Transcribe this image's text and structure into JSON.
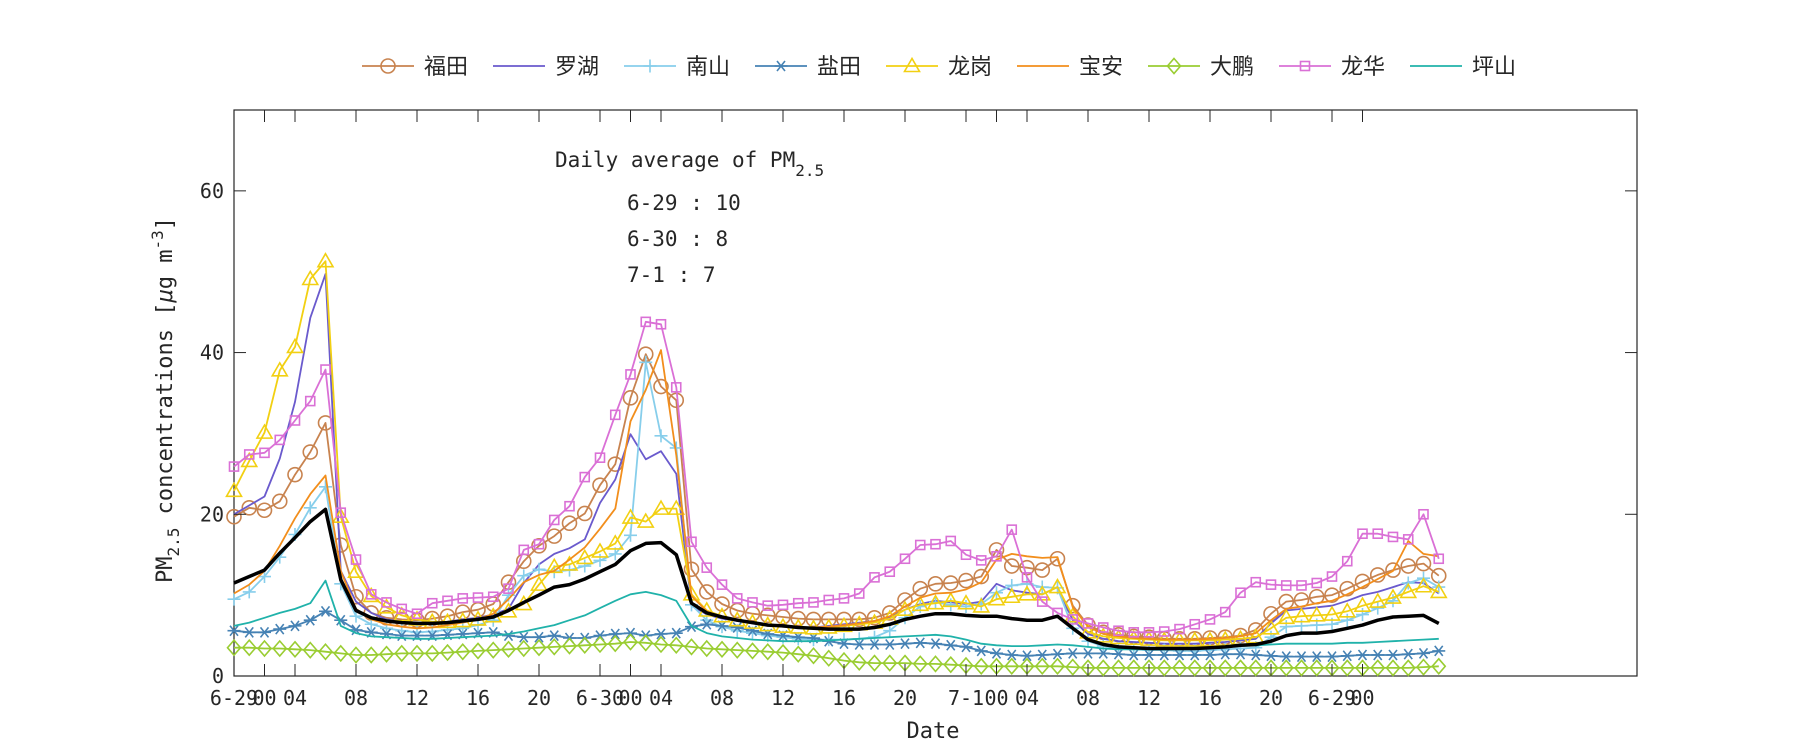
{
  "chart_data": {
    "type": "line",
    "title": "",
    "xlabel": "Date",
    "ylabel": "PM2.5 concentrations [μg m^-3]",
    "ylabel_parts": {
      "pm": "PM",
      "sub": "2.5",
      "rest": " concentrations [",
      "mu": "μ",
      "unit": "g m",
      "exp": "-3",
      "close": "]"
    },
    "x_unit": "hour index (hourly samples from 6-29 00:00)",
    "xlim": [
      0,
      92
    ],
    "ylim": [
      0,
      70
    ],
    "yticks": [
      0,
      20,
      40,
      60
    ],
    "x_tick_labels": [
      {
        "x": 0,
        "label": "6-29"
      },
      {
        "x": 2,
        "label": "00"
      },
      {
        "x": 4,
        "label": "04"
      },
      {
        "x": 8,
        "label": "08"
      },
      {
        "x": 12,
        "label": "12"
      },
      {
        "x": 16,
        "label": "16"
      },
      {
        "x": 20,
        "label": "20"
      },
      {
        "x": 24,
        "label": "6-30"
      },
      {
        "x": 26,
        "label": "00"
      },
      {
        "x": 28,
        "label": "04"
      },
      {
        "x": 32,
        "label": "08"
      },
      {
        "x": 36,
        "label": "12"
      },
      {
        "x": 40,
        "label": "16"
      },
      {
        "x": 44,
        "label": "20"
      },
      {
        "x": 48,
        "label": "7-1"
      },
      {
        "x": 50,
        "label": "00"
      },
      {
        "x": 52,
        "label": "04"
      },
      {
        "x": 56,
        "label": "08"
      },
      {
        "x": 60,
        "label": "12"
      },
      {
        "x": 64,
        "label": "16"
      },
      {
        "x": 68,
        "label": "20"
      },
      {
        "x": 72,
        "label": "6-29"
      },
      {
        "x": 74,
        "label": "00"
      }
    ],
    "legend": {
      "placement": "top, outside plot"
    },
    "annotation": {
      "title_main": "Daily average of PM",
      "title_sub": "2.5",
      "lines": [
        "6-29 : 10",
        "6-30 : 8",
        "7-1 : 7"
      ]
    },
    "grid": false,
    "series": [
      {
        "name": "福田",
        "color": "#C8834F",
        "marker": "circle",
        "values": [
          19.7,
          20.8,
          20.5,
          21.6,
          24.9,
          27.7,
          31.3,
          16.2,
          9.8,
          7.8,
          7.2,
          7.0,
          6.9,
          7.1,
          7.4,
          7.9,
          8.2,
          8.9,
          11.6,
          14.2,
          16.1,
          17.3,
          18.9,
          20.1,
          23.6,
          26.2,
          34.4,
          39.8,
          35.8,
          34.1,
          13.2,
          10.4,
          8.9,
          8.1,
          7.7,
          7.5,
          7.3,
          7.1,
          7.0,
          7.0,
          7.0,
          7.0,
          7.2,
          7.8,
          9.4,
          10.8,
          11.4,
          11.5,
          11.8,
          12.3,
          15.6,
          13.6,
          13.4,
          13.1,
          14.5,
          8.7,
          6.3,
          5.4,
          5.1,
          4.9,
          4.8,
          4.6,
          4.6,
          4.6,
          4.7,
          4.8,
          5.0,
          5.7,
          7.7,
          9.2,
          9.4,
          9.8,
          10.0,
          10.8,
          11.7,
          12.5,
          13.1,
          13.6,
          13.9,
          12.4
        ]
      },
      {
        "name": "罗湖",
        "color": "#6A5ACD",
        "marker": "none",
        "values": [
          20.0,
          21.1,
          22.2,
          26.9,
          33.9,
          44.3,
          49.7,
          13.0,
          9.2,
          7.8,
          7.0,
          6.7,
          6.5,
          6.4,
          6.7,
          7.0,
          7.2,
          7.6,
          8.3,
          11.5,
          13.8,
          15.1,
          15.8,
          16.9,
          21.4,
          24.3,
          29.9,
          26.8,
          27.8,
          25.0,
          8.7,
          7.6,
          7.1,
          6.8,
          6.5,
          6.3,
          6.1,
          6.0,
          6.0,
          6.2,
          6.4,
          6.6,
          6.8,
          7.3,
          8.2,
          8.9,
          9.3,
          9.1,
          8.9,
          9.2,
          11.4,
          10.6,
          10.3,
          10.1,
          11.0,
          6.9,
          5.2,
          4.6,
          4.3,
          4.2,
          4.1,
          4.0,
          4.0,
          4.0,
          4.1,
          4.2,
          4.4,
          4.6,
          6.5,
          8.1,
          8.3,
          8.5,
          8.7,
          9.3,
          10.0,
          10.4,
          11.0,
          11.6,
          11.5,
          10.2
        ]
      },
      {
        "name": "南山",
        "color": "#87CEEB",
        "marker": "plus",
        "values": [
          9.5,
          10.4,
          12.3,
          14.7,
          17.5,
          20.8,
          23.4,
          11.4,
          7.4,
          6.4,
          5.9,
          5.6,
          5.4,
          5.5,
          5.7,
          5.9,
          6.3,
          6.9,
          10.0,
          12.4,
          13.2,
          12.9,
          13.1,
          13.6,
          14.3,
          15.1,
          17.4,
          38.8,
          29.7,
          28.2,
          8.8,
          6.9,
          6.1,
          5.6,
          5.3,
          5.0,
          4.8,
          4.6,
          4.5,
          4.5,
          4.5,
          4.6,
          4.8,
          5.6,
          7.2,
          8.6,
          9.1,
          8.8,
          8.6,
          8.9,
          10.3,
          11.2,
          11.4,
          11.0,
          10.9,
          5.9,
          4.3,
          3.7,
          3.4,
          3.3,
          3.2,
          3.2,
          3.1,
          3.1,
          3.2,
          3.3,
          3.4,
          3.5,
          4.8,
          6.1,
          6.2,
          6.3,
          6.4,
          6.9,
          7.6,
          8.4,
          9.3,
          11.5,
          12.1,
          11.0
        ]
      },
      {
        "name": "盐田",
        "color": "#4682B4",
        "marker": "asterisk",
        "values": [
          5.6,
          5.4,
          5.4,
          5.8,
          6.2,
          6.9,
          8.0,
          6.9,
          5.7,
          5.4,
          5.2,
          5.0,
          5.0,
          5.0,
          5.1,
          5.2,
          5.3,
          5.4,
          5.0,
          4.8,
          4.8,
          5.0,
          4.7,
          4.7,
          5.0,
          5.2,
          5.3,
          5.0,
          5.2,
          5.3,
          6.1,
          6.4,
          6.2,
          6.0,
          5.6,
          5.2,
          5.0,
          4.8,
          4.7,
          4.3,
          4.0,
          3.9,
          3.9,
          3.9,
          4.0,
          4.1,
          4.0,
          3.8,
          3.6,
          3.1,
          2.8,
          2.6,
          2.5,
          2.6,
          2.7,
          2.8,
          2.8,
          2.8,
          2.7,
          2.6,
          2.6,
          2.6,
          2.6,
          2.6,
          2.6,
          2.7,
          2.7,
          2.6,
          2.5,
          2.4,
          2.4,
          2.4,
          2.4,
          2.5,
          2.6,
          2.6,
          2.6,
          2.7,
          2.8,
          3.1
        ]
      },
      {
        "name": "龙岗",
        "color": "#F2D012",
        "marker": "triangle",
        "values": [
          22.9,
          26.6,
          30.1,
          37.8,
          40.7,
          49.1,
          51.3,
          19.7,
          12.9,
          9.9,
          8.5,
          7.5,
          7.0,
          6.7,
          6.7,
          6.8,
          7.0,
          7.4,
          8.0,
          8.9,
          11.3,
          13.5,
          13.8,
          14.6,
          15.4,
          16.4,
          19.6,
          19.1,
          20.7,
          20.7,
          10.1,
          8.1,
          7.4,
          6.9,
          6.6,
          6.3,
          6.1,
          6.0,
          5.9,
          6.0,
          6.2,
          6.4,
          6.6,
          7.1,
          8.2,
          8.8,
          9.0,
          9.3,
          9.0,
          8.6,
          9.5,
          9.8,
          10.1,
          10.1,
          11.0,
          7.4,
          5.4,
          4.9,
          4.7,
          4.6,
          4.5,
          4.4,
          4.4,
          4.4,
          4.4,
          4.5,
          4.6,
          4.8,
          5.9,
          7.2,
          7.4,
          7.5,
          7.6,
          8.0,
          8.7,
          9.2,
          9.7,
          10.4,
          11.1,
          10.4
        ]
      },
      {
        "name": "宝安",
        "color": "#F28E1C",
        "marker": "none",
        "values": [
          10.2,
          11.3,
          13.0,
          16.1,
          19.5,
          22.5,
          24.8,
          13.0,
          8.3,
          7.0,
          6.4,
          6.1,
          5.9,
          6.0,
          6.3,
          6.6,
          7.0,
          7.7,
          9.5,
          11.6,
          12.5,
          13.0,
          14.4,
          15.9,
          18.2,
          20.7,
          31.5,
          35.4,
          40.3,
          27.3,
          9.9,
          8.0,
          7.3,
          6.9,
          6.6,
          6.4,
          6.2,
          6.0,
          6.0,
          6.1,
          6.3,
          6.5,
          6.8,
          7.4,
          8.6,
          9.7,
          10.2,
          10.3,
          10.7,
          11.6,
          14.4,
          15.1,
          14.8,
          14.6,
          14.7,
          8.5,
          6.1,
          5.2,
          4.9,
          4.7,
          4.6,
          4.5,
          4.5,
          4.5,
          4.6,
          4.7,
          4.9,
          5.3,
          6.9,
          8.3,
          8.6,
          9.0,
          9.3,
          10.1,
          11.0,
          12.0,
          13.0,
          16.7,
          15.1,
          14.8
        ]
      },
      {
        "name": "大鹏",
        "color": "#9ACD32",
        "marker": "diamond",
        "values": [
          3.5,
          3.5,
          3.4,
          3.4,
          3.3,
          3.2,
          3.0,
          2.8,
          2.6,
          2.6,
          2.7,
          2.8,
          2.8,
          2.8,
          2.9,
          3.0,
          3.1,
          3.2,
          3.3,
          3.4,
          3.5,
          3.6,
          3.7,
          3.8,
          3.9,
          4.0,
          4.2,
          4.1,
          3.9,
          3.8,
          3.6,
          3.4,
          3.3,
          3.2,
          3.1,
          3.0,
          2.9,
          2.7,
          2.5,
          2.2,
          1.9,
          1.7,
          1.6,
          1.6,
          1.6,
          1.5,
          1.5,
          1.4,
          1.3,
          1.2,
          1.2,
          1.2,
          1.2,
          1.2,
          1.2,
          1.1,
          1.0,
          1.0,
          1.0,
          1.0,
          1.0,
          1.0,
          1.0,
          1.0,
          1.0,
          1.0,
          1.0,
          1.0,
          1.0,
          1.0,
          1.0,
          1.0,
          1.0,
          1.0,
          1.0,
          1.0,
          1.0,
          1.0,
          1.1,
          1.2
        ]
      },
      {
        "name": "龙华",
        "color": "#DA70D6",
        "marker": "square",
        "values": [
          25.9,
          27.4,
          27.6,
          29.2,
          31.6,
          34.0,
          37.9,
          20.2,
          14.4,
          10.1,
          9.1,
          8.3,
          7.7,
          9.0,
          9.3,
          9.6,
          9.7,
          9.8,
          10.8,
          15.6,
          16.3,
          19.3,
          21.0,
          24.6,
          27.0,
          32.3,
          37.3,
          43.8,
          43.5,
          35.7,
          16.6,
          13.4,
          11.3,
          9.6,
          9.1,
          8.7,
          8.8,
          9.0,
          9.1,
          9.4,
          9.6,
          10.2,
          12.2,
          12.9,
          14.5,
          16.2,
          16.3,
          16.7,
          15.0,
          14.3,
          14.8,
          18.1,
          12.2,
          9.2,
          7.8,
          7.0,
          6.5,
          6.0,
          5.6,
          5.4,
          5.4,
          5.5,
          5.8,
          6.4,
          7.0,
          7.9,
          10.3,
          11.6,
          11.3,
          11.2,
          11.2,
          11.5,
          12.3,
          14.2,
          17.6,
          17.6,
          17.2,
          16.9,
          20.0,
          14.5
        ]
      },
      {
        "name": "坪山",
        "color": "#20B2AA",
        "marker": "none",
        "values": [
          6.2,
          6.6,
          7.2,
          7.8,
          8.3,
          9.0,
          11.8,
          6.2,
          5.3,
          4.9,
          4.8,
          4.7,
          4.6,
          4.6,
          4.7,
          4.8,
          4.9,
          5.0,
          5.2,
          5.5,
          5.9,
          6.3,
          6.9,
          7.5,
          8.4,
          9.3,
          10.1,
          10.4,
          10.0,
          9.3,
          6.2,
          5.3,
          4.9,
          4.7,
          4.5,
          4.4,
          4.3,
          4.3,
          4.3,
          4.4,
          4.5,
          4.6,
          4.7,
          4.8,
          4.9,
          5.0,
          5.1,
          4.9,
          4.5,
          4.0,
          3.8,
          3.7,
          3.7,
          3.8,
          3.9,
          3.8,
          3.6,
          3.4,
          3.3,
          3.3,
          3.3,
          3.3,
          3.3,
          3.4,
          3.5,
          3.6,
          3.7,
          3.8,
          3.9,
          4.0,
          4.0,
          4.0,
          4.0,
          4.1,
          4.1,
          4.2,
          4.3,
          4.4,
          4.5,
          4.6
        ]
      },
      {
        "name": "",
        "color": "#000000",
        "marker": "none",
        "width": 3.5,
        "values": [
          11.5,
          12.3,
          13.1,
          15.2,
          17.1,
          19.1,
          20.6,
          11.9,
          8.1,
          7.2,
          6.8,
          6.6,
          6.5,
          6.5,
          6.6,
          6.8,
          7.0,
          7.3,
          8.1,
          9.1,
          10.0,
          11.0,
          11.3,
          12.0,
          12.9,
          13.8,
          15.5,
          16.4,
          16.5,
          15.0,
          9.0,
          7.8,
          7.3,
          6.9,
          6.6,
          6.3,
          6.2,
          6.0,
          5.9,
          5.8,
          5.8,
          5.8,
          6.0,
          6.4,
          7.0,
          7.4,
          7.7,
          7.7,
          7.5,
          7.4,
          7.4,
          7.1,
          6.9,
          6.9,
          7.4,
          5.9,
          4.5,
          3.9,
          3.6,
          3.5,
          3.4,
          3.4,
          3.4,
          3.4,
          3.5,
          3.6,
          3.8,
          3.9,
          4.3,
          5.0,
          5.3,
          5.3,
          5.5,
          5.9,
          6.3,
          6.9,
          7.3,
          7.4,
          7.5,
          6.5
        ]
      }
    ]
  }
}
